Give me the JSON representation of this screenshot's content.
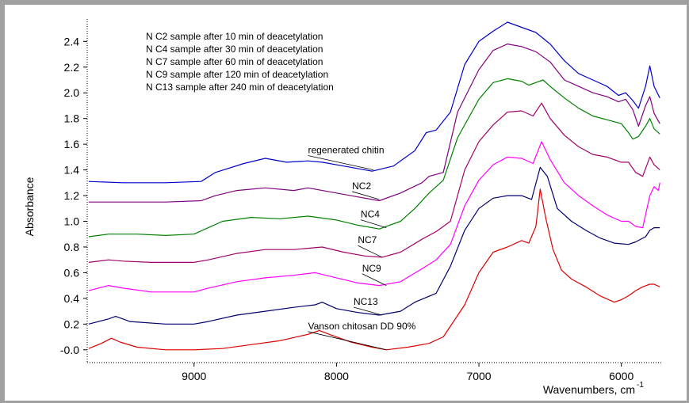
{
  "chart_data": {
    "type": "line",
    "xlabel": "Wavenumbers, cm",
    "xlabel_superscript": "-1",
    "ylabel": "Absorbance",
    "xlim": [
      9750,
      5720
    ],
    "ylim": [
      -0.1,
      2.55
    ],
    "x_reversed": true,
    "x_ticks": [
      9000,
      8000,
      7000,
      6000
    ],
    "x_tick_labels": [
      "9000",
      "8000",
      "7000",
      "6000"
    ],
    "y_ticks": [
      0.0,
      0.2,
      0.4,
      0.6,
      0.8,
      1.0,
      1.2,
      1.4,
      1.6,
      1.8,
      2.0,
      2.2,
      2.4
    ],
    "y_tick_labels": [
      "-0.0",
      "0.2",
      "0.4",
      "0.6",
      "0.8",
      "1.0",
      "1.2",
      "1.4",
      "1.6",
      "1.8",
      "2.0",
      "2.2",
      "2.4"
    ],
    "grid": false,
    "legend": [
      "N  C2 sample after 10 min of deacetylation",
      "N  C4 sample after 30 min of deacetylation",
      "N  C7 sample after 60 min of deacetylation",
      "N  C9 sample after 120 min of deacetylation",
      "N  C13  sample after 240 min of deacetylation"
    ],
    "series": [
      {
        "name": "regenerated chitin",
        "color": "#0000cc",
        "label_at": [
          7740,
          1.4
        ],
        "label_pos": [
          8200,
          1.53
        ],
        "points": [
          [
            9740,
            1.31
          ],
          [
            9500,
            1.3
          ],
          [
            9200,
            1.3
          ],
          [
            8950,
            1.31
          ],
          [
            8850,
            1.38
          ],
          [
            8650,
            1.45
          ],
          [
            8500,
            1.49
          ],
          [
            8350,
            1.46
          ],
          [
            8200,
            1.47
          ],
          [
            8100,
            1.46
          ],
          [
            7950,
            1.43
          ],
          [
            7750,
            1.39
          ],
          [
            7600,
            1.43
          ],
          [
            7450,
            1.55
          ],
          [
            7370,
            1.69
          ],
          [
            7300,
            1.71
          ],
          [
            7200,
            1.85
          ],
          [
            7100,
            2.22
          ],
          [
            7000,
            2.4
          ],
          [
            6900,
            2.48
          ],
          [
            6800,
            2.55
          ],
          [
            6700,
            2.51
          ],
          [
            6600,
            2.47
          ],
          [
            6500,
            2.38
          ],
          [
            6400,
            2.25
          ],
          [
            6300,
            2.15
          ],
          [
            6200,
            2.1
          ],
          [
            6100,
            2.05
          ],
          [
            6020,
            1.98
          ],
          [
            5970,
            2.0
          ],
          [
            5920,
            1.94
          ],
          [
            5880,
            1.88
          ],
          [
            5830,
            2.05
          ],
          [
            5800,
            2.21
          ],
          [
            5770,
            2.05
          ],
          [
            5730,
            1.96
          ]
        ]
      },
      {
        "name": "NC2",
        "color": "#800080",
        "label_at": [
          7700,
          1.17
        ],
        "label_pos": [
          7890,
          1.25
        ],
        "points": [
          [
            9740,
            1.15
          ],
          [
            9500,
            1.15
          ],
          [
            9200,
            1.15
          ],
          [
            8950,
            1.16
          ],
          [
            8850,
            1.2
          ],
          [
            8700,
            1.24
          ],
          [
            8500,
            1.26
          ],
          [
            8300,
            1.24
          ],
          [
            8200,
            1.26
          ],
          [
            8000,
            1.22
          ],
          [
            7850,
            1.19
          ],
          [
            7700,
            1.16
          ],
          [
            7550,
            1.22
          ],
          [
            7400,
            1.3
          ],
          [
            7350,
            1.35
          ],
          [
            7250,
            1.38
          ],
          [
            7150,
            1.85
          ],
          [
            7000,
            2.18
          ],
          [
            6900,
            2.33
          ],
          [
            6800,
            2.38
          ],
          [
            6700,
            2.36
          ],
          [
            6600,
            2.32
          ],
          [
            6500,
            2.24
          ],
          [
            6400,
            2.1
          ],
          [
            6300,
            2.05
          ],
          [
            6200,
            2.0
          ],
          [
            6100,
            1.97
          ],
          [
            6020,
            1.93
          ],
          [
            5970,
            1.95
          ],
          [
            5920,
            1.87
          ],
          [
            5880,
            1.74
          ],
          [
            5830,
            1.9
          ],
          [
            5800,
            1.97
          ],
          [
            5770,
            1.84
          ],
          [
            5730,
            1.76
          ]
        ]
      },
      {
        "name": "NC4",
        "color": "#008000",
        "label_at": [
          7650,
          0.95
        ],
        "label_pos": [
          7830,
          1.03
        ],
        "points": [
          [
            9740,
            0.88
          ],
          [
            9600,
            0.9
          ],
          [
            9400,
            0.9
          ],
          [
            9200,
            0.89
          ],
          [
            9000,
            0.9
          ],
          [
            8900,
            0.95
          ],
          [
            8800,
            1.0
          ],
          [
            8600,
            1.03
          ],
          [
            8400,
            1.02
          ],
          [
            8200,
            1.04
          ],
          [
            8000,
            1.01
          ],
          [
            7850,
            0.97
          ],
          [
            7700,
            0.94
          ],
          [
            7550,
            1.0
          ],
          [
            7450,
            1.1
          ],
          [
            7350,
            1.22
          ],
          [
            7250,
            1.32
          ],
          [
            7150,
            1.65
          ],
          [
            7000,
            1.95
          ],
          [
            6900,
            2.08
          ],
          [
            6800,
            2.11
          ],
          [
            6700,
            2.09
          ],
          [
            6650,
            2.06
          ],
          [
            6600,
            2.08
          ],
          [
            6550,
            2.1
          ],
          [
            6500,
            2.05
          ],
          [
            6400,
            1.96
          ],
          [
            6300,
            1.88
          ],
          [
            6200,
            1.82
          ],
          [
            6100,
            1.79
          ],
          [
            6000,
            1.76
          ],
          [
            5950,
            1.69
          ],
          [
            5920,
            1.64
          ],
          [
            5880,
            1.66
          ],
          [
            5830,
            1.74
          ],
          [
            5800,
            1.8
          ],
          [
            5770,
            1.72
          ],
          [
            5730,
            1.68
          ]
        ]
      },
      {
        "name": "NC7",
        "color": "#a0006a",
        "label_at": [
          7680,
          0.72
        ],
        "label_pos": [
          7850,
          0.83
        ],
        "points": [
          [
            9740,
            0.68
          ],
          [
            9600,
            0.7
          ],
          [
            9500,
            0.69
          ],
          [
            9300,
            0.68
          ],
          [
            9000,
            0.68
          ],
          [
            8900,
            0.7
          ],
          [
            8700,
            0.75
          ],
          [
            8500,
            0.78
          ],
          [
            8300,
            0.78
          ],
          [
            8100,
            0.8
          ],
          [
            7950,
            0.76
          ],
          [
            7800,
            0.73
          ],
          [
            7680,
            0.72
          ],
          [
            7550,
            0.76
          ],
          [
            7400,
            0.86
          ],
          [
            7300,
            0.92
          ],
          [
            7200,
            1.0
          ],
          [
            7100,
            1.4
          ],
          [
            7000,
            1.62
          ],
          [
            6900,
            1.75
          ],
          [
            6800,
            1.85
          ],
          [
            6700,
            1.86
          ],
          [
            6620,
            1.82
          ],
          [
            6560,
            1.92
          ],
          [
            6500,
            1.8
          ],
          [
            6400,
            1.67
          ],
          [
            6300,
            1.58
          ],
          [
            6200,
            1.52
          ],
          [
            6100,
            1.5
          ],
          [
            6000,
            1.46
          ],
          [
            5950,
            1.46
          ],
          [
            5900,
            1.38
          ],
          [
            5850,
            1.35
          ],
          [
            5800,
            1.5
          ],
          [
            5770,
            1.44
          ],
          [
            5730,
            1.4
          ]
        ]
      },
      {
        "name": "NC9",
        "color": "#ff00ff",
        "label_at": [
          7650,
          0.5
        ],
        "label_pos": [
          7820,
          0.61
        ],
        "points": [
          [
            9740,
            0.46
          ],
          [
            9600,
            0.5
          ],
          [
            9500,
            0.48
          ],
          [
            9300,
            0.45
          ],
          [
            9000,
            0.45
          ],
          [
            8900,
            0.48
          ],
          [
            8700,
            0.53
          ],
          [
            8500,
            0.56
          ],
          [
            8300,
            0.58
          ],
          [
            8150,
            0.6
          ],
          [
            8000,
            0.56
          ],
          [
            7850,
            0.52
          ],
          [
            7700,
            0.5
          ],
          [
            7550,
            0.53
          ],
          [
            7400,
            0.63
          ],
          [
            7300,
            0.7
          ],
          [
            7200,
            0.82
          ],
          [
            7100,
            1.12
          ],
          [
            7000,
            1.32
          ],
          [
            6900,
            1.44
          ],
          [
            6800,
            1.5
          ],
          [
            6700,
            1.49
          ],
          [
            6620,
            1.45
          ],
          [
            6560,
            1.62
          ],
          [
            6500,
            1.48
          ],
          [
            6400,
            1.3
          ],
          [
            6300,
            1.2
          ],
          [
            6200,
            1.12
          ],
          [
            6100,
            1.05
          ],
          [
            6000,
            1.0
          ],
          [
            5950,
            1.0
          ],
          [
            5900,
            0.96
          ],
          [
            5850,
            0.95
          ],
          [
            5800,
            1.2
          ],
          [
            5770,
            1.27
          ],
          [
            5740,
            1.24
          ],
          [
            5730,
            1.3
          ]
        ]
      },
      {
        "name": "NC13",
        "color": "#000070",
        "label_at": [
          7680,
          0.27
        ],
        "label_pos": [
          7880,
          0.35
        ],
        "points": [
          [
            9740,
            0.2
          ],
          [
            9600,
            0.24
          ],
          [
            9550,
            0.26
          ],
          [
            9450,
            0.22
          ],
          [
            9200,
            0.2
          ],
          [
            9000,
            0.2
          ],
          [
            8900,
            0.22
          ],
          [
            8700,
            0.27
          ],
          [
            8500,
            0.3
          ],
          [
            8300,
            0.33
          ],
          [
            8150,
            0.35
          ],
          [
            8100,
            0.37
          ],
          [
            8000,
            0.32
          ],
          [
            7850,
            0.29
          ],
          [
            7700,
            0.27
          ],
          [
            7550,
            0.3
          ],
          [
            7450,
            0.37
          ],
          [
            7300,
            0.44
          ],
          [
            7200,
            0.65
          ],
          [
            7100,
            0.93
          ],
          [
            7000,
            1.1
          ],
          [
            6900,
            1.18
          ],
          [
            6800,
            1.2
          ],
          [
            6700,
            1.2
          ],
          [
            6630,
            1.17
          ],
          [
            6570,
            1.42
          ],
          [
            6520,
            1.35
          ],
          [
            6450,
            1.1
          ],
          [
            6350,
            1.0
          ],
          [
            6250,
            0.93
          ],
          [
            6150,
            0.87
          ],
          [
            6050,
            0.83
          ],
          [
            5950,
            0.82
          ],
          [
            5900,
            0.84
          ],
          [
            5830,
            0.88
          ],
          [
            5800,
            0.93
          ],
          [
            5770,
            0.95
          ],
          [
            5730,
            0.95
          ]
        ]
      },
      {
        "name": "Vanson chitosan DD 90%",
        "color": "#dd0000",
        "label_at": [
          7650,
          0.0
        ],
        "label_pos": [
          8200,
          0.16
        ],
        "points": [
          [
            9740,
            0.01
          ],
          [
            9650,
            0.05
          ],
          [
            9580,
            0.09
          ],
          [
            9520,
            0.06
          ],
          [
            9400,
            0.02
          ],
          [
            9200,
            0.0
          ],
          [
            9000,
            0.0
          ],
          [
            8800,
            0.01
          ],
          [
            8600,
            0.04
          ],
          [
            8400,
            0.07
          ],
          [
            8200,
            0.12
          ],
          [
            8120,
            0.15
          ],
          [
            8050,
            0.12
          ],
          [
            7900,
            0.06
          ],
          [
            7750,
            0.02
          ],
          [
            7650,
            0.0
          ],
          [
            7500,
            0.02
          ],
          [
            7350,
            0.05
          ],
          [
            7250,
            0.1
          ],
          [
            7100,
            0.35
          ],
          [
            7000,
            0.6
          ],
          [
            6900,
            0.76
          ],
          [
            6800,
            0.8
          ],
          [
            6700,
            0.85
          ],
          [
            6650,
            0.83
          ],
          [
            6600,
            0.96
          ],
          [
            6570,
            1.25
          ],
          [
            6530,
            1.02
          ],
          [
            6480,
            0.78
          ],
          [
            6420,
            0.62
          ],
          [
            6350,
            0.55
          ],
          [
            6250,
            0.49
          ],
          [
            6150,
            0.42
          ],
          [
            6050,
            0.37
          ],
          [
            6000,
            0.39
          ],
          [
            5950,
            0.42
          ],
          [
            5900,
            0.46
          ],
          [
            5850,
            0.49
          ],
          [
            5800,
            0.51
          ],
          [
            5770,
            0.51
          ],
          [
            5730,
            0.49
          ]
        ]
      }
    ]
  }
}
